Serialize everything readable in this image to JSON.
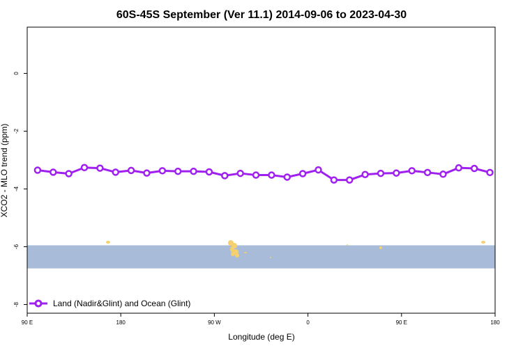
{
  "chart_data": {
    "type": "line",
    "title": "60S-45S September (Ver 11.1)   2014-09-06 to 2023-04-30",
    "xlabel": "Longitude (deg E)",
    "ylabel": "XCO2 - MLO trend (ppm)",
    "x_ticks": [
      {
        "value": 90,
        "label": "90 E"
      },
      {
        "value": 180,
        "label": "180"
      },
      {
        "value": 270,
        "label": "90 W"
      },
      {
        "value": 360,
        "label": "0"
      },
      {
        "value": 450,
        "label": "90 E"
      },
      {
        "value": 540,
        "label": "180"
      }
    ],
    "y_ticks": [
      {
        "value": 0,
        "label": "0"
      },
      {
        "value": -2,
        "label": "-2"
      },
      {
        "value": -4,
        "label": "-4"
      },
      {
        "value": -6,
        "label": "-6"
      },
      {
        "value": -8,
        "label": "-8"
      }
    ],
    "xlim": [
      90,
      540
    ],
    "ylim": [
      -8.3,
      1.6
    ],
    "grid": false,
    "legend_position": "bottom-left",
    "series": [
      {
        "name": "Land (Nadir&Glint) and Ocean (Glint)",
        "color": "#a020f0",
        "x": [
          100,
          115,
          130,
          145,
          160,
          175,
          190,
          205,
          220,
          235,
          250,
          265,
          280,
          295,
          310,
          325,
          340,
          355,
          370,
          385,
          400,
          415,
          430,
          445,
          460,
          475,
          490,
          505,
          520,
          535
        ],
        "y": [
          -3.35,
          -3.42,
          -3.47,
          -3.26,
          -3.28,
          -3.42,
          -3.36,
          -3.45,
          -3.37,
          -3.39,
          -3.39,
          -3.41,
          -3.54,
          -3.46,
          -3.52,
          -3.52,
          -3.59,
          -3.47,
          -3.34,
          -3.69,
          -3.69,
          -3.5,
          -3.46,
          -3.45,
          -3.37,
          -3.43,
          -3.49,
          -3.27,
          -3.29,
          -3.43
        ]
      }
    ],
    "map_band": {
      "y_top": -5.95,
      "y_bottom": -6.75,
      "ocean_color": "#a8bcd9",
      "land_color": "#f5d06e"
    }
  }
}
